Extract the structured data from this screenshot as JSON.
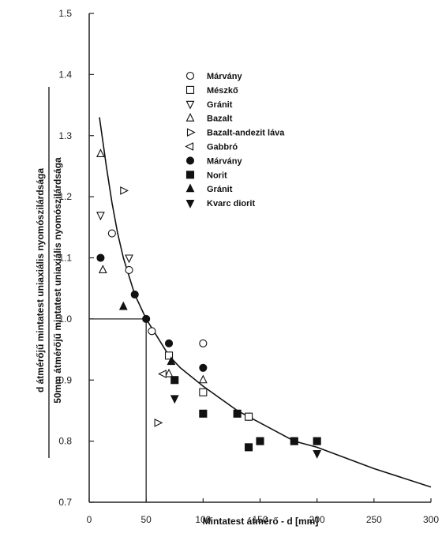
{
  "chart_data": {
    "type": "scatter",
    "title": "",
    "xlabel": "Mintatest átmérő - d [mm]",
    "ylabel_numerator": "d átmérőjű mintatest uniaxiális nyomószilárdsága",
    "ylabel_denominator": "50mm átmérőjű mintatest uniaxiális nyomószilárdsága",
    "xlim": [
      0,
      300
    ],
    "ylim": [
      0.7,
      1.5
    ],
    "x_ticks": [
      0,
      50,
      100,
      150,
      200,
      250,
      300
    ],
    "y_ticks": [
      0.7,
      0.8,
      0.9,
      1.0,
      1.1,
      1.2,
      1.3,
      1.4,
      1.5
    ],
    "y_tick_labels": [
      "0.7",
      "0.8",
      "0.9",
      "1.0",
      "1.1",
      "1.2",
      "1.3",
      "1.4",
      "1.5"
    ],
    "grid": false,
    "legend_position": "top-center",
    "reference_point": {
      "x": 50,
      "y": 1.0
    },
    "fit_curve": {
      "x": [
        9,
        15,
        20,
        25,
        30,
        40,
        50,
        60,
        70,
        80,
        100,
        130,
        150,
        180,
        200,
        250,
        300
      ],
      "y": [
        1.33,
        1.25,
        1.19,
        1.14,
        1.1,
        1.04,
        1.0,
        0.97,
        0.94,
        0.92,
        0.89,
        0.85,
        0.83,
        0.8,
        0.79,
        0.755,
        0.725
      ]
    },
    "series": [
      {
        "name": "Márvány",
        "marker": "circle-open",
        "x": [
          20,
          35,
          55,
          100,
          140
        ],
        "y": [
          1.14,
          1.08,
          0.98,
          0.96,
          0.84
        ]
      },
      {
        "name": "Mészkő",
        "marker": "square-open",
        "x": [
          70,
          100,
          140
        ],
        "y": [
          0.94,
          0.88,
          0.84
        ]
      },
      {
        "name": "Gránit",
        "marker": "triangle-down-open",
        "x": [
          10,
          35
        ],
        "y": [
          1.17,
          1.1
        ]
      },
      {
        "name": "Bazalt",
        "marker": "triangle-up-open",
        "x": [
          10,
          12,
          70,
          100
        ],
        "y": [
          1.27,
          1.08,
          0.91,
          0.9
        ]
      },
      {
        "name": "Bazalt-andezit láva",
        "marker": "triangle-right-open",
        "x": [
          30,
          60
        ],
        "y": [
          1.21,
          0.83
        ]
      },
      {
        "name": "Gabbró",
        "marker": "triangle-left-open",
        "x": [
          65
        ],
        "y": [
          0.91
        ]
      },
      {
        "name": "Márvány",
        "marker": "circle-filled",
        "x": [
          10,
          40,
          50,
          70,
          100
        ],
        "y": [
          1.1,
          1.04,
          1.0,
          0.96,
          0.92
        ]
      },
      {
        "name": "Norit",
        "marker": "square-filled",
        "x": [
          75,
          100,
          130,
          140,
          150,
          180,
          200
        ],
        "y": [
          0.9,
          0.845,
          0.845,
          0.79,
          0.8,
          0.8,
          0.8
        ]
      },
      {
        "name": "Gránit",
        "marker": "triangle-up-filled",
        "x": [
          30,
          72
        ],
        "y": [
          1.02,
          0.93
        ]
      },
      {
        "name": "Kvarc diorit",
        "marker": "triangle-down-filled",
        "x": [
          75,
          200
        ],
        "y": [
          0.87,
          0.78
        ]
      }
    ]
  }
}
